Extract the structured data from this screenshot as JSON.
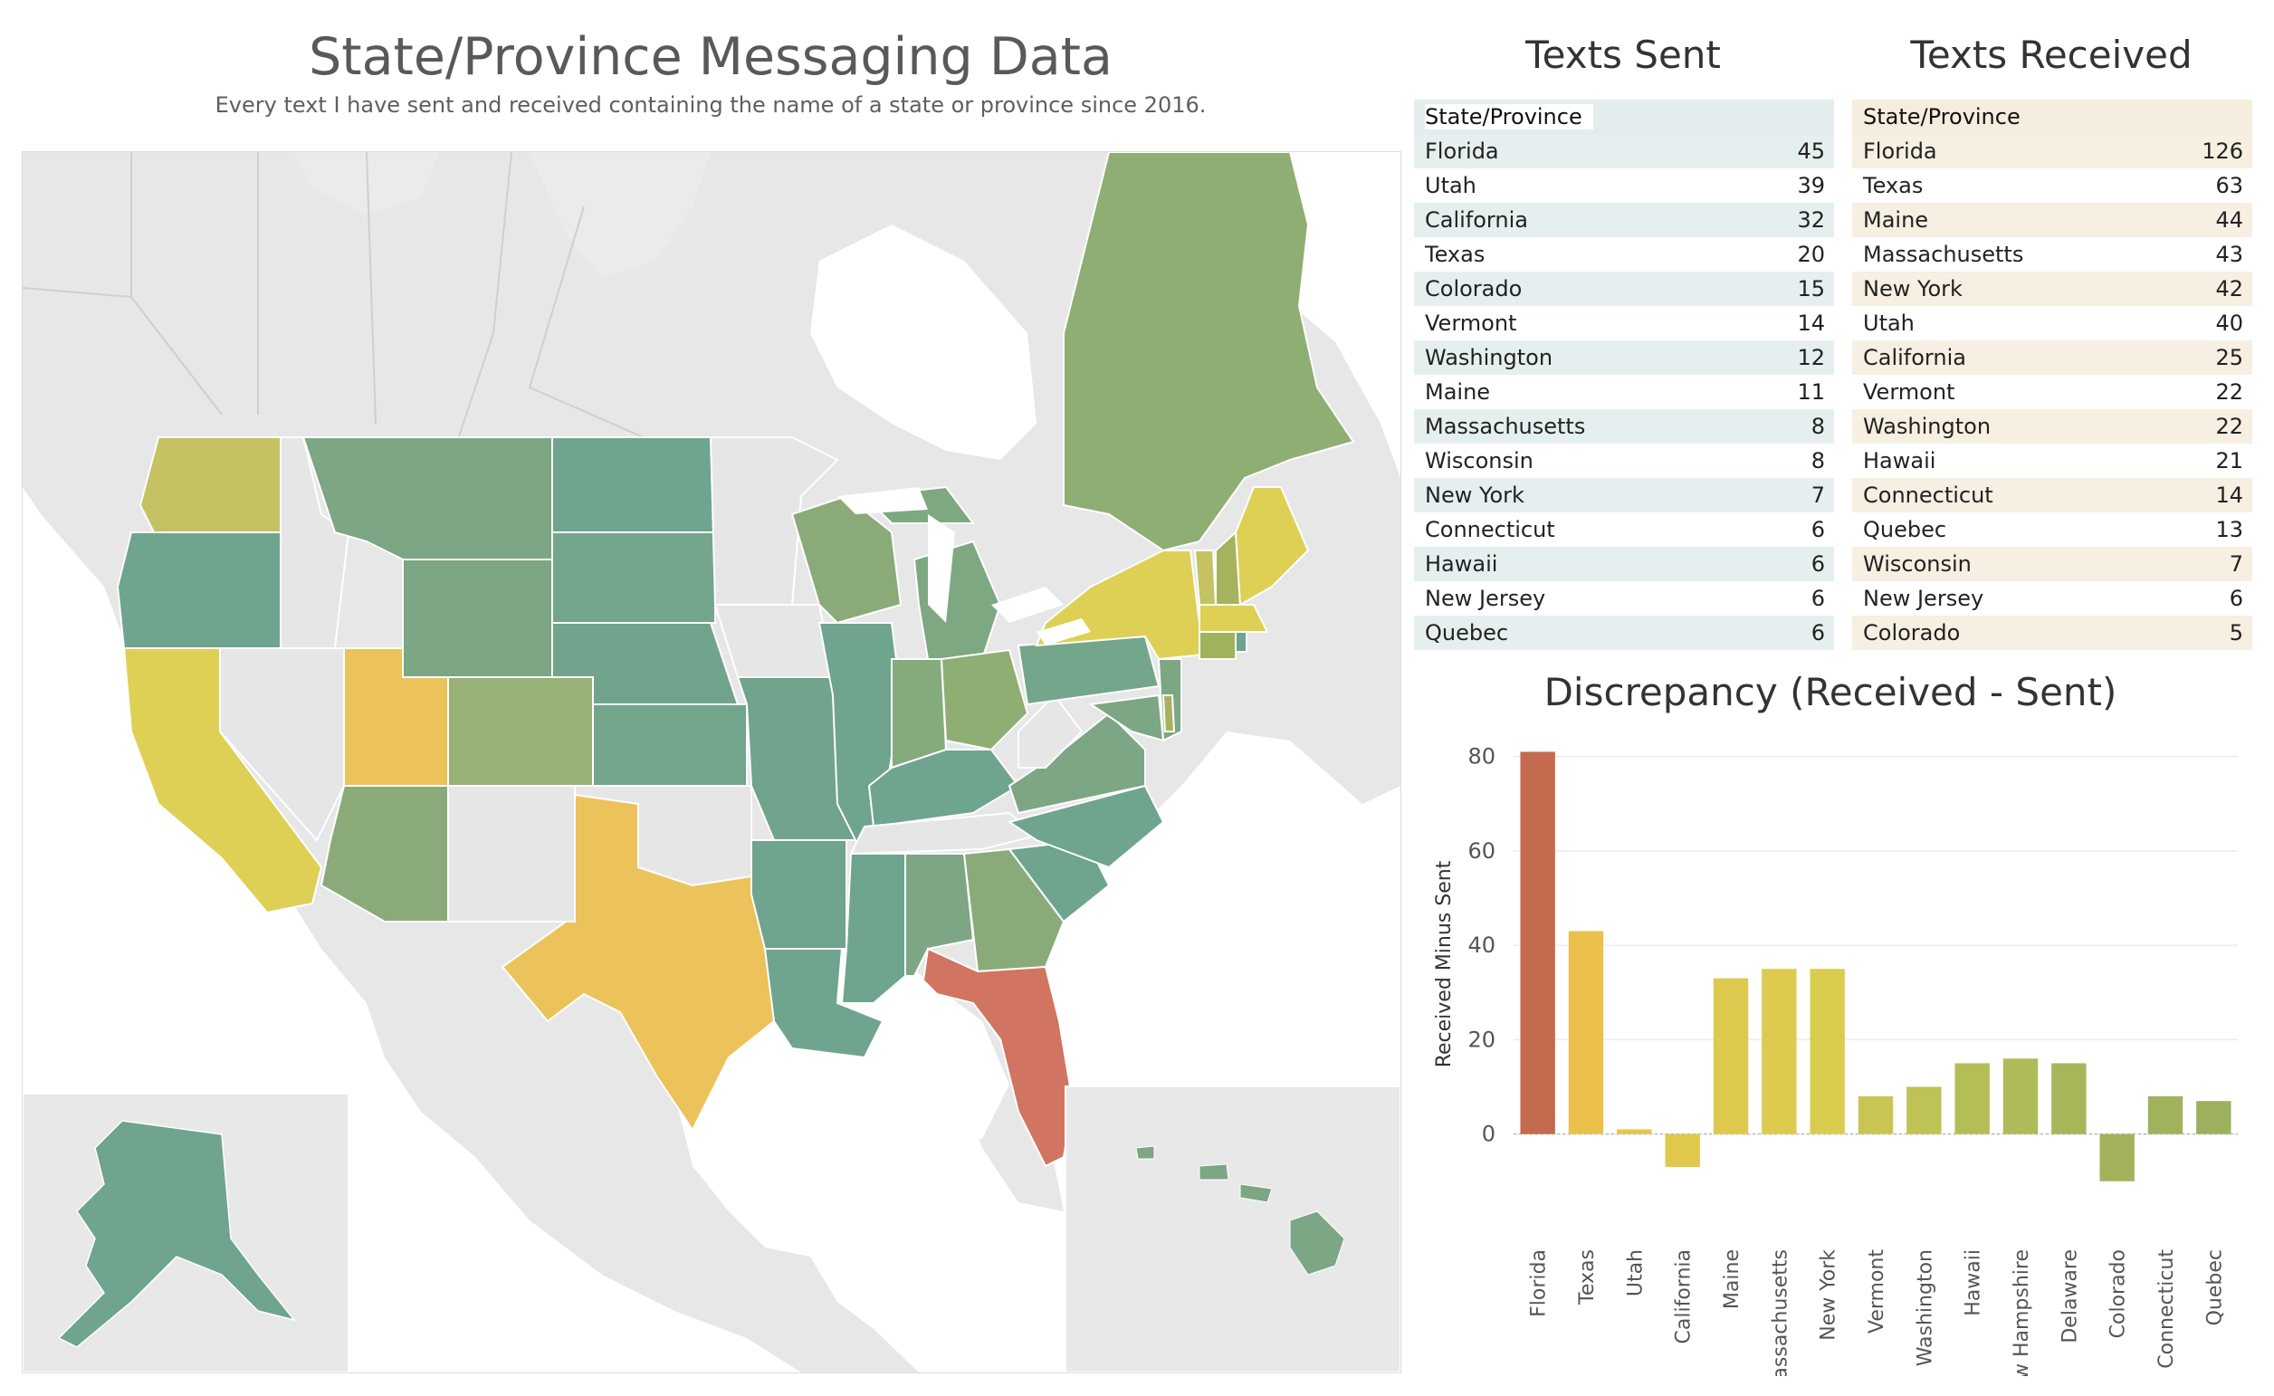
{
  "header": {
    "title": "State/Province Messaging Data",
    "subtitle": "Every text I have sent and received containing the name of a state or province since 2016."
  },
  "colors": {
    "teal": "#6fa48f",
    "green": "#8fae73",
    "olive": "#a7b25e",
    "yellow": "#ddd055",
    "gold": "#ecc25a",
    "red": "#d17461",
    "land": "#e6e6e6",
    "border": "#ffffff"
  },
  "sent_table": {
    "title": "Texts Sent",
    "column": "State/Province",
    "rows": [
      {
        "name": "Florida",
        "value": "45"
      },
      {
        "name": "Utah",
        "value": "39"
      },
      {
        "name": "California",
        "value": "32"
      },
      {
        "name": "Texas",
        "value": "20"
      },
      {
        "name": "Colorado",
        "value": "15"
      },
      {
        "name": "Vermont",
        "value": "14"
      },
      {
        "name": "Washington",
        "value": "12"
      },
      {
        "name": "Maine",
        "value": "11"
      },
      {
        "name": "Massachusetts",
        "value": "8"
      },
      {
        "name": "Wisconsin",
        "value": "8"
      },
      {
        "name": "New York",
        "value": "7"
      },
      {
        "name": "Connecticut",
        "value": "6"
      },
      {
        "name": "Hawaii",
        "value": "6"
      },
      {
        "name": "New Jersey",
        "value": "6"
      },
      {
        "name": "Quebec",
        "value": "6"
      }
    ]
  },
  "received_table": {
    "title": "Texts Received",
    "column": "State/Province",
    "rows": [
      {
        "name": "Florida",
        "value": "126"
      },
      {
        "name": "Texas",
        "value": "63"
      },
      {
        "name": "Maine",
        "value": "44"
      },
      {
        "name": "Massachusetts",
        "value": "43"
      },
      {
        "name": "New York",
        "value": "42"
      },
      {
        "name": "Utah",
        "value": "40"
      },
      {
        "name": "California",
        "value": "25"
      },
      {
        "name": "Vermont",
        "value": "22"
      },
      {
        "name": "Washington",
        "value": "22"
      },
      {
        "name": "Hawaii",
        "value": "21"
      },
      {
        "name": "Connecticut",
        "value": "14"
      },
      {
        "name": "Quebec",
        "value": "13"
      },
      {
        "name": "Wisconsin",
        "value": "7"
      },
      {
        "name": "New Jersey",
        "value": "6"
      },
      {
        "name": "Colorado",
        "value": "5"
      }
    ]
  },
  "chart_data": {
    "type": "bar",
    "title": "Discrepancy (Received - Sent)",
    "xlabel": "",
    "ylabel": "Received Minus Sent",
    "ylim": [
      -11,
      83
    ],
    "yticks": [
      0,
      20,
      40,
      60,
      80
    ],
    "grid": true,
    "categories": [
      "Florida",
      "Texas",
      "Utah",
      "California",
      "Maine",
      "Massachusetts",
      "New York",
      "Vermont",
      "Washington",
      "Hawaii",
      "New Hampshire",
      "Delaware",
      "Colorado",
      "Connecticut",
      "Quebec"
    ],
    "values": [
      81,
      43,
      1,
      -7,
      33,
      35,
      35,
      8,
      10,
      15,
      16,
      15,
      -10,
      8,
      7
    ],
    "bar_colors": [
      "#c46a4f",
      "#ebc04b",
      "#e7c54c",
      "#dfc84c",
      "#ddc94d",
      "#dccb4e",
      "#d9cd50",
      "#c9c553",
      "#bfc255",
      "#b5bd57",
      "#afba59",
      "#a8b65a",
      "#a2b35b",
      "#a0b25c",
      "#9db05d"
    ]
  }
}
